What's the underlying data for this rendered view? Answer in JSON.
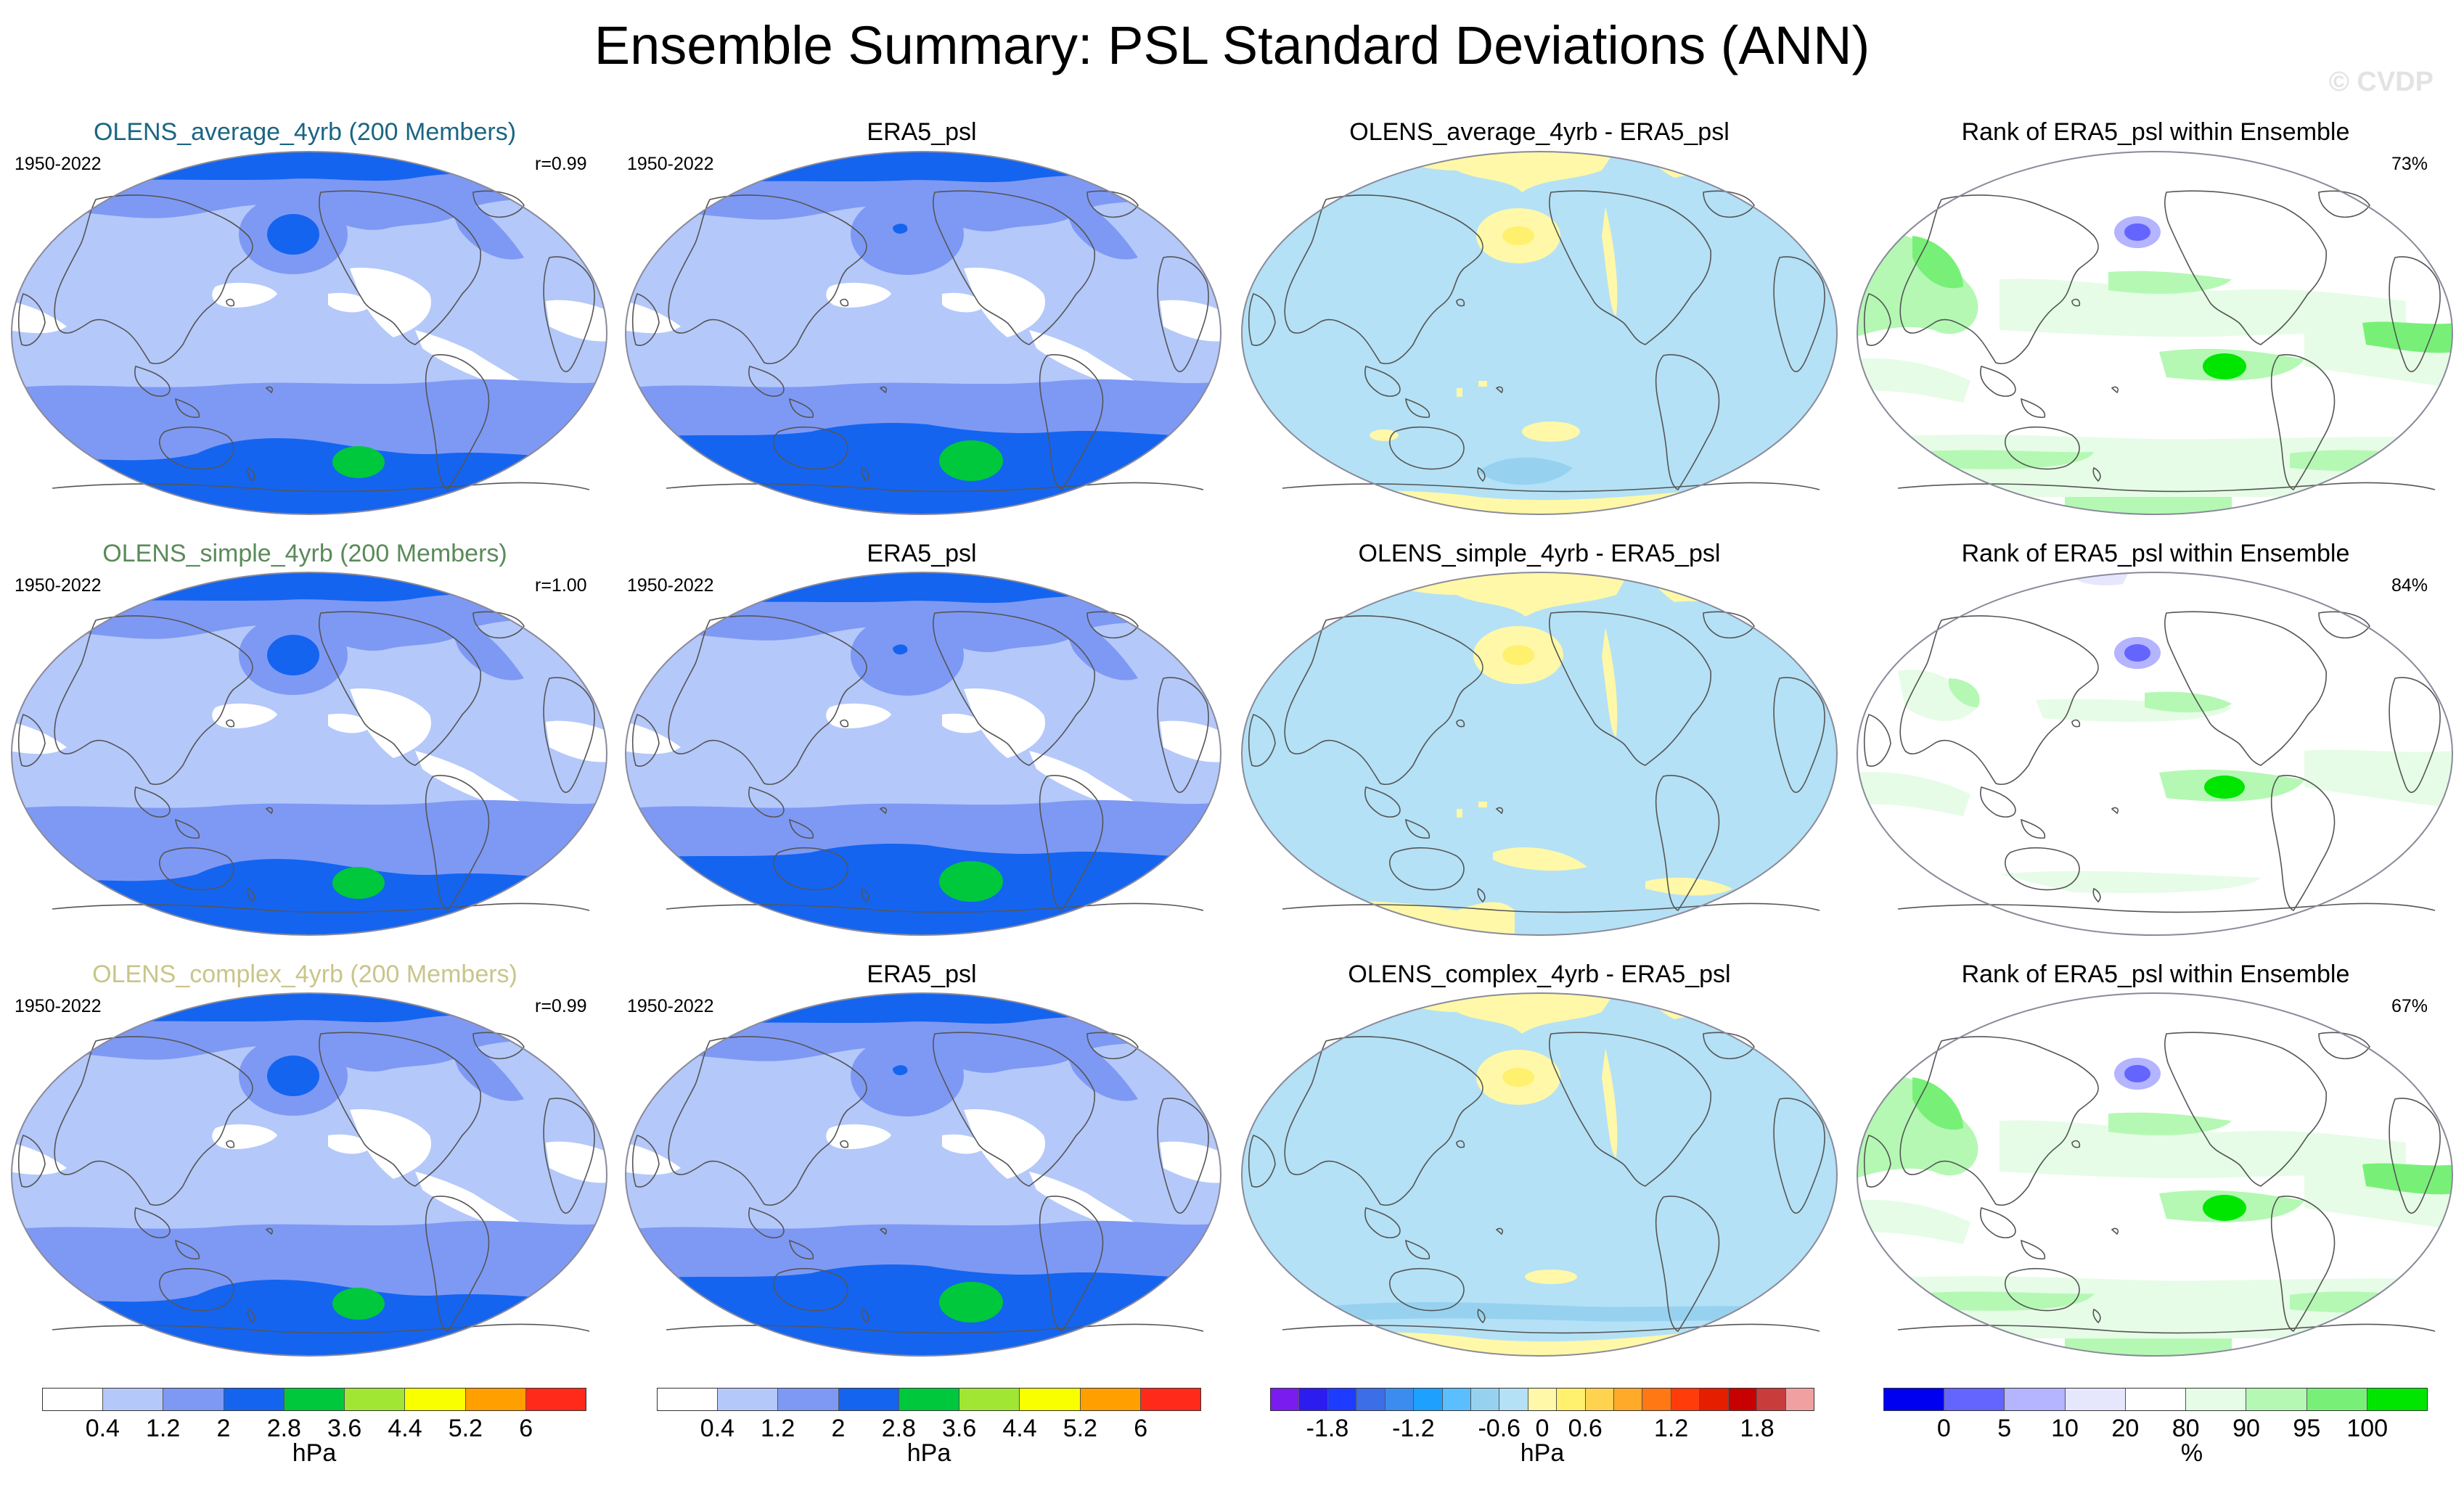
{
  "title": "Ensemble Summary: PSL Standard Deviations (ANN)",
  "watermark": "© CVDP",
  "colors": {
    "std": [
      "#ffffff",
      "#b4c8fa",
      "#7e99f4",
      "#1464f0",
      "#00c83c",
      "#a0e632",
      "#faff00",
      "#ff9f00",
      "#ff2a1a"
    ],
    "diff": [
      "#7a1cf0",
      "#2d1cf0",
      "#1e3cff",
      "#3c6ee8",
      "#3c8cf0",
      "#1ea0ff",
      "#5abeff",
      "#96d2f0",
      "#b4e1f5",
      "#fff8a8",
      "#fff06e",
      "#ffd250",
      "#ffaa28",
      "#ff7814",
      "#ff3c0a",
      "#e61e00",
      "#c80000",
      "#c83c3c",
      "#f0a0a0"
    ],
    "rank": [
      "#0000f0",
      "#6464ff",
      "#b4b4ff",
      "#e6e6fc",
      "#ffffff",
      "#e6fce6",
      "#b4f8b4",
      "#78f078",
      "#00e600"
    ],
    "title_olens_average": "#1b6583",
    "title_olens_simple": "#5a8a5a",
    "title_olens_complex": "#c9c58a"
  },
  "rows": [
    {
      "model_title": "OLENS_average_4yrb (200 Members)",
      "model_period": "1950-2022",
      "model_r": "r=0.99",
      "obs_title": "ERA5_psl",
      "obs_period": "1950-2022",
      "diff_title": "OLENS_average_4yrb - ERA5_psl",
      "rank_title": "Rank of ERA5_psl within Ensemble",
      "rank_pct": "73%"
    },
    {
      "model_title": "OLENS_simple_4yrb (200 Members)",
      "model_period": "1950-2022",
      "model_r": "r=1.00",
      "obs_title": "ERA5_psl",
      "obs_period": "1950-2022",
      "diff_title": "OLENS_simple_4yrb - ERA5_psl",
      "rank_title": "Rank of ERA5_psl within Ensemble",
      "rank_pct": "84%"
    },
    {
      "model_title": "OLENS_complex_4yrb (200 Members)",
      "model_period": "1950-2022",
      "model_r": "r=0.99",
      "obs_title": "ERA5_psl",
      "obs_period": "1950-2022",
      "diff_title": "OLENS_complex_4yrb - ERA5_psl",
      "rank_title": "Rank of ERA5_psl within Ensemble",
      "rank_pct": "67%"
    }
  ],
  "chart_data": {
    "type": "heatmap",
    "projection": "global map panels (4 columns x 3 rows)",
    "colorbars": [
      {
        "name": "std",
        "unit": "hPa",
        "ticks": [
          "0.4",
          "1.2",
          "2",
          "2.8",
          "3.6",
          "4.4",
          "5.2",
          "6"
        ],
        "levels": [
          0.4,
          1.2,
          2,
          2.8,
          3.6,
          4.4,
          5.2,
          6
        ]
      },
      {
        "name": "std",
        "unit": "hPa",
        "ticks": [
          "0.4",
          "1.2",
          "2",
          "2.8",
          "3.6",
          "4.4",
          "5.2",
          "6"
        ],
        "levels": [
          0.4,
          1.2,
          2,
          2.8,
          3.6,
          4.4,
          5.2,
          6
        ]
      },
      {
        "name": "diff",
        "unit": "hPa",
        "ticks": [
          "-1.8",
          "-1.2",
          "-0.6",
          "0",
          "0.6",
          "1.2",
          "1.8"
        ],
        "levels": [
          -1.8,
          -1.2,
          -0.6,
          0,
          0.6,
          1.2,
          1.8
        ]
      },
      {
        "name": "rank",
        "unit": "%",
        "ticks": [
          "0",
          "5",
          "10",
          "20",
          "80",
          "90",
          "95",
          "100"
        ],
        "levels": [
          0,
          5,
          10,
          20,
          80,
          90,
          95,
          100
        ]
      }
    ]
  }
}
